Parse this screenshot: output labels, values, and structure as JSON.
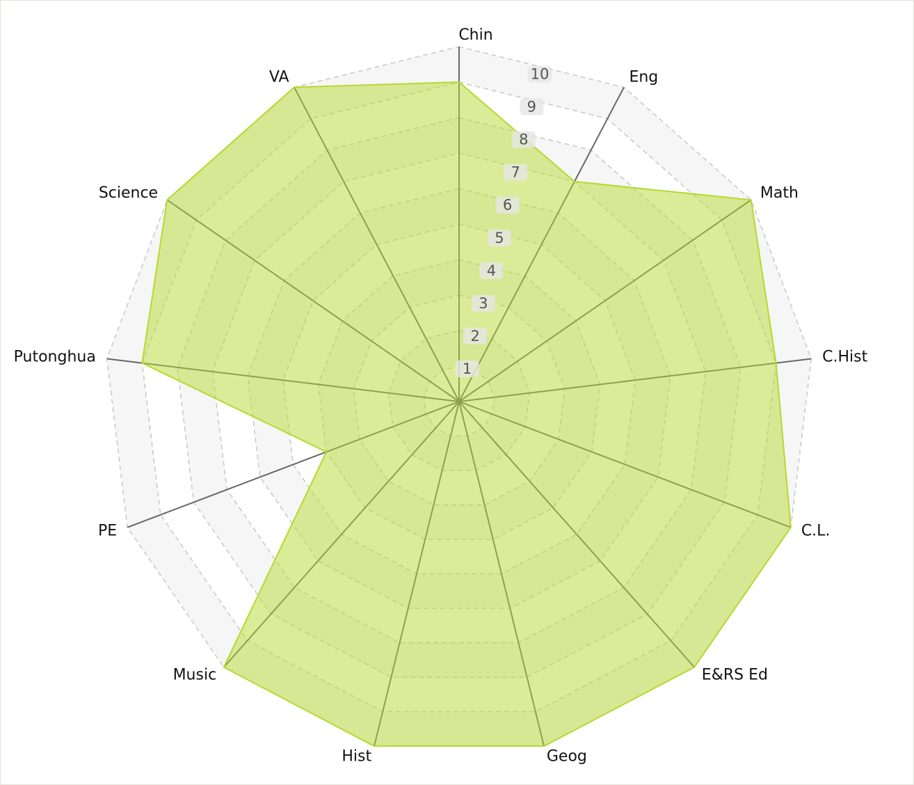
{
  "chart_data": {
    "type": "radar",
    "categories": [
      "Chin",
      "Eng",
      "Math",
      "C.Hist",
      "C.L.",
      "E&RS Ed",
      "Geog",
      "Hist",
      "Music",
      "PE",
      "Putonghua",
      "Science",
      "VA"
    ],
    "values": [
      9,
      7,
      10,
      9,
      10,
      10,
      10,
      10,
      10,
      4,
      9,
      10,
      10
    ],
    "color": "#b5d930",
    "ylim": [
      0,
      10
    ],
    "yticks": [
      1,
      2,
      3,
      4,
      5,
      6,
      7,
      8,
      9,
      10
    ],
    "grid": true
  }
}
